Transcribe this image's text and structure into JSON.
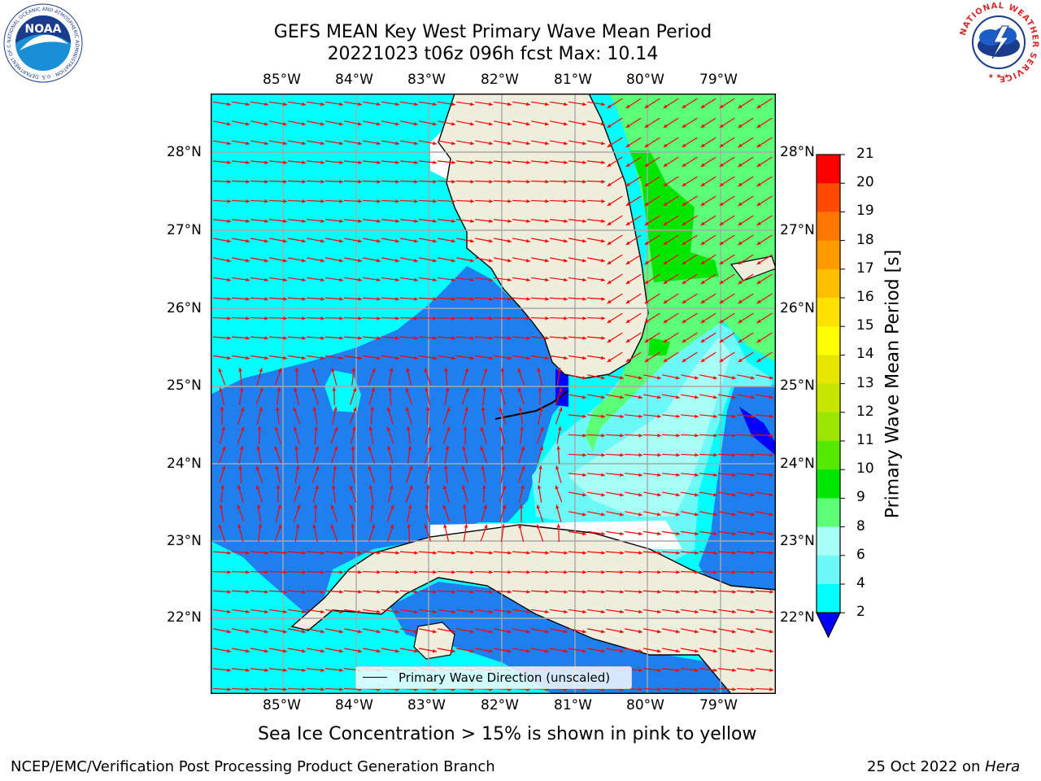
{
  "title": {
    "line1": "GEFS MEAN Key West Primary Wave Mean Period",
    "line2": "20221023 t06z 096h fcst   Max: 10.14"
  },
  "map": {
    "lon_labels": [
      "85°W",
      "84°W",
      "83°W",
      "82°W",
      "81°W",
      "80°W",
      "79°W"
    ],
    "lat_labels": [
      "28°N",
      "27°N",
      "26°N",
      "25°N",
      "24°N",
      "23°N",
      "22°N"
    ],
    "legend_label": "Primary Wave Direction (unscaled)",
    "colors": {
      "land": "#efeddc",
      "period_2_4": "#1f7fee",
      "period_4_6": "#00ffff",
      "period_6_8": "#6ef9f9",
      "period_8_9": "#a8fff5",
      "period_9_10": "#5bff78",
      "period_10_11": "#00e600",
      "arrows": "#ff0000"
    }
  },
  "colorbar": {
    "label": "Primary Wave Mean Period [s]",
    "ticks": [
      "21",
      "20",
      "19",
      "18",
      "17",
      "16",
      "15",
      "14",
      "13",
      "12",
      "11",
      "10",
      "9",
      "8",
      "6",
      "4",
      "2"
    ],
    "colors": [
      "#0000ff",
      "#1f7fee",
      "#00ffff",
      "#6ef9f9",
      "#a8fff5",
      "#5bff78",
      "#00e600",
      "#55eb00",
      "#99e600",
      "#c6e600",
      "#e6e600",
      "#ffff00",
      "#ffe100",
      "#ffbf00",
      "#ff9900",
      "#ff7700",
      "#ff4a00",
      "#ff0000"
    ]
  },
  "caption": "Sea Ice Concentration > 15% is shown in pink to yellow",
  "footer": {
    "left": "NCEP/EMC/Verification Post Processing Product Generation Branch",
    "right_prefix": "25 Oct 2022 on ",
    "right_host": "Hera"
  },
  "logos": {
    "noaa_text": "NOAA",
    "noaa_ring": "NATIONAL OCEANIC AND ATMOSPHERIC ADMINISTRATION · U.S. DEPARTMENT OF COMMERCE ·",
    "nws_ring": "NATIONAL WEATHER SERVICE"
  }
}
